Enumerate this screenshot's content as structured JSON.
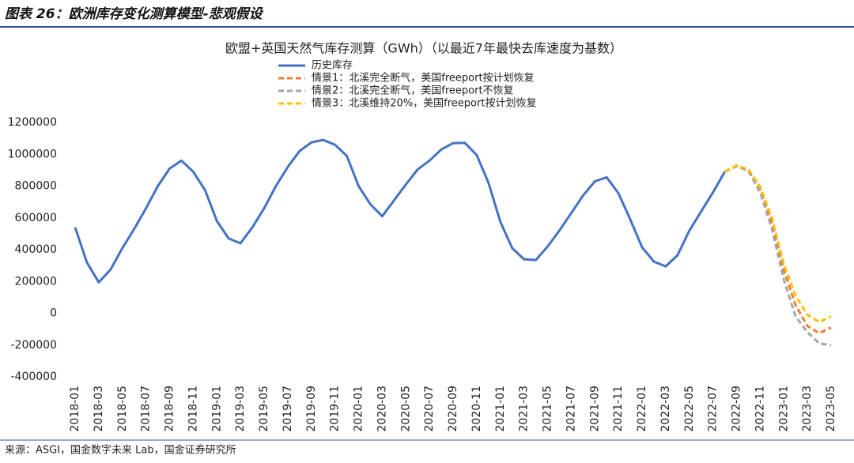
{
  "header": {
    "title": "图表 26：欧洲库存变化测算模型-悲观假设"
  },
  "chart_data": {
    "type": "line",
    "title": "欧盟+英国天然气库存测算（GWh）（以最近7年最快去库速度为基数）",
    "categories": [
      "2018-01",
      null,
      "2018-03",
      null,
      "2018-05",
      null,
      "2018-07",
      null,
      "2018-09",
      null,
      "2018-11",
      null,
      "2019-01",
      null,
      "2019-03",
      null,
      "2019-05",
      null,
      "2019-07",
      null,
      "2019-09",
      null,
      "2019-11",
      null,
      "2020-01",
      null,
      "2020-03",
      null,
      "2020-05",
      null,
      "2020-07",
      null,
      "2020-09",
      null,
      "2020-11",
      null,
      "2021-01",
      null,
      "2021-03",
      null,
      "2021-05",
      null,
      "2021-07",
      null,
      "2021-09",
      null,
      "2021-11",
      null,
      "2022-01",
      null,
      "2022-03",
      null,
      "2022-05",
      null,
      "2022-07",
      null,
      "2022-09",
      null,
      "2022-11",
      null,
      "2023-01",
      null,
      "2023-03",
      null,
      "2023-05"
    ],
    "series": [
      {
        "name": "历史库存",
        "color": "#4472c4",
        "dashed": false,
        "values": [
          540000,
          320000,
          195000,
          275000,
          410000,
          530000,
          660000,
          800000,
          910000,
          960000,
          890000,
          775000,
          580000,
          470000,
          440000,
          540000,
          660000,
          800000,
          920000,
          1020000,
          1075000,
          1090000,
          1060000,
          990000,
          800000,
          685000,
          610000,
          710000,
          810000,
          905000,
          960000,
          1030000,
          1070000,
          1072000,
          995000,
          820000,
          575000,
          410000,
          340000,
          335000,
          420000,
          520000,
          630000,
          740000,
          830000,
          855000,
          755000,
          590000,
          415000,
          325000,
          295000,
          365000,
          520000,
          640000,
          760000,
          890000,
          null,
          null,
          null,
          null,
          null,
          null,
          null,
          null,
          null
        ]
      },
      {
        "name": "情景1：北溪完全断气，美国freeport按计划恢复",
        "color": "#ed7d31",
        "dashed": true,
        "values": [
          null,
          null,
          null,
          null,
          null,
          null,
          null,
          null,
          null,
          null,
          null,
          null,
          null,
          null,
          null,
          null,
          null,
          null,
          null,
          null,
          null,
          null,
          null,
          null,
          null,
          null,
          null,
          null,
          null,
          null,
          null,
          null,
          null,
          null,
          null,
          null,
          null,
          null,
          null,
          null,
          null,
          null,
          null,
          null,
          null,
          null,
          null,
          null,
          null,
          null,
          null,
          null,
          null,
          null,
          null,
          890000,
          925000,
          900000,
          780000,
          570000,
          270000,
          50000,
          -80000,
          -125000,
          -90000
        ]
      },
      {
        "name": "情景2：北溪完全断气，美国freeport不恢复",
        "color": "#a5a5a5",
        "dashed": true,
        "values": [
          null,
          null,
          null,
          null,
          null,
          null,
          null,
          null,
          null,
          null,
          null,
          null,
          null,
          null,
          null,
          null,
          null,
          null,
          null,
          null,
          null,
          null,
          null,
          null,
          null,
          null,
          null,
          null,
          null,
          null,
          null,
          null,
          null,
          null,
          null,
          null,
          null,
          null,
          null,
          null,
          null,
          null,
          null,
          null,
          null,
          null,
          null,
          null,
          null,
          null,
          null,
          null,
          null,
          null,
          null,
          890000,
          925000,
          895000,
          760000,
          530000,
          210000,
          -20000,
          -120000,
          -190000,
          -200000
        ]
      },
      {
        "name": "情景3：北溪维持20%，美国freeport按计划恢复",
        "color": "#ffc000",
        "dashed": true,
        "values": [
          null,
          null,
          null,
          null,
          null,
          null,
          null,
          null,
          null,
          null,
          null,
          null,
          null,
          null,
          null,
          null,
          null,
          null,
          null,
          null,
          null,
          null,
          null,
          null,
          null,
          null,
          null,
          null,
          null,
          null,
          null,
          null,
          null,
          null,
          null,
          null,
          null,
          null,
          null,
          null,
          null,
          null,
          null,
          null,
          null,
          null,
          null,
          null,
          null,
          null,
          null,
          null,
          null,
          null,
          null,
          890000,
          930000,
          905000,
          795000,
          600000,
          310000,
          110000,
          -10000,
          -55000,
          -20000
        ]
      }
    ],
    "ylim": [
      -400000,
      1200000
    ],
    "yticks": [
      -400000,
      -200000,
      0,
      200000,
      400000,
      600000,
      800000,
      1000000,
      1200000
    ],
    "grid": false
  },
  "footer": {
    "source": "来源：ASGI，国金数字未来 Lab，国金证券研究所"
  }
}
